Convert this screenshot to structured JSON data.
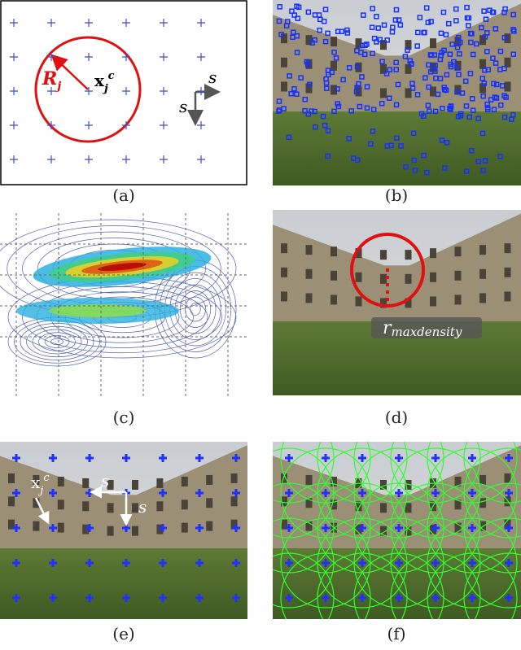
{
  "panels": [
    {
      "label": "(a)",
      "radius": {
        "base": "R",
        "sub": "j"
      },
      "center": {
        "base": "x",
        "sub": "j",
        "sup": "c"
      },
      "step_x": "s",
      "step_y": "s"
    },
    {
      "label": "(b)"
    },
    {
      "label": "(c)"
    },
    {
      "label": "(d)",
      "radius": {
        "base": "r",
        "sub": "maxdensity"
      }
    },
    {
      "label": "(e)",
      "center": {
        "base": "x",
        "sub": "j",
        "sup": "c"
      },
      "step_x": "s",
      "step_y": "s"
    },
    {
      "label": "(f)"
    }
  ]
}
